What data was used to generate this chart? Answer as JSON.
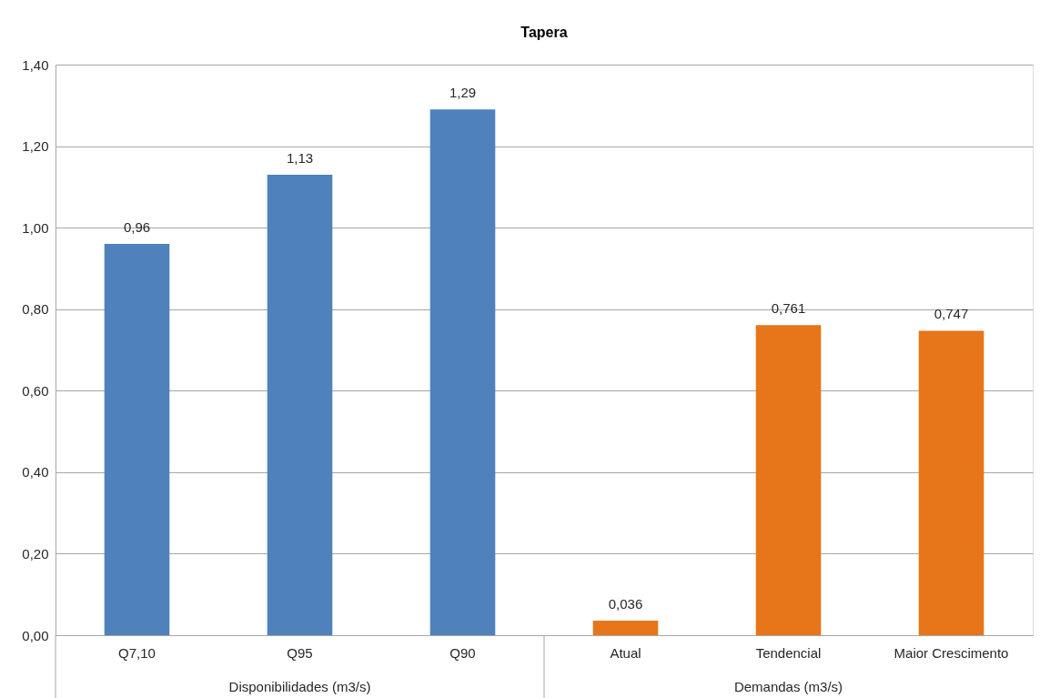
{
  "chart_data": {
    "type": "bar",
    "title": "Tapera",
    "categories": [
      "Q7,10",
      "Q95",
      "Q90",
      "Atual",
      "Tendencial",
      "Maior Crescimento"
    ],
    "values": [
      0.96,
      1.13,
      1.29,
      0.036,
      0.761,
      0.747
    ],
    "colors": [
      "#4f81bd",
      "#4f81bd",
      "#4f81bd",
      "#e67619",
      "#e67619",
      "#e67619"
    ],
    "value_labels": [
      "0,96",
      "1,13",
      "1,29",
      "0,036",
      "0,761",
      "0,747"
    ],
    "annotations": [
      "Disponibilidades (m3/s)",
      "Demandas (m3/s)"
    ],
    "ylim": [
      0,
      1.4
    ],
    "yticks": [
      {
        "value": 0,
        "label": "0,00"
      },
      {
        "value": 0.2,
        "label": "0,20"
      },
      {
        "value": 0.4,
        "label": "0,40"
      },
      {
        "value": 0.6,
        "label": "0,60"
      },
      {
        "value": 0.8,
        "label": "0,80"
      },
      {
        "value": 1.0,
        "label": "1,00"
      },
      {
        "value": 1.2,
        "label": "1,20"
      },
      {
        "value": 1.4,
        "label": "1,40"
      }
    ],
    "grid": "y",
    "legend": false
  }
}
